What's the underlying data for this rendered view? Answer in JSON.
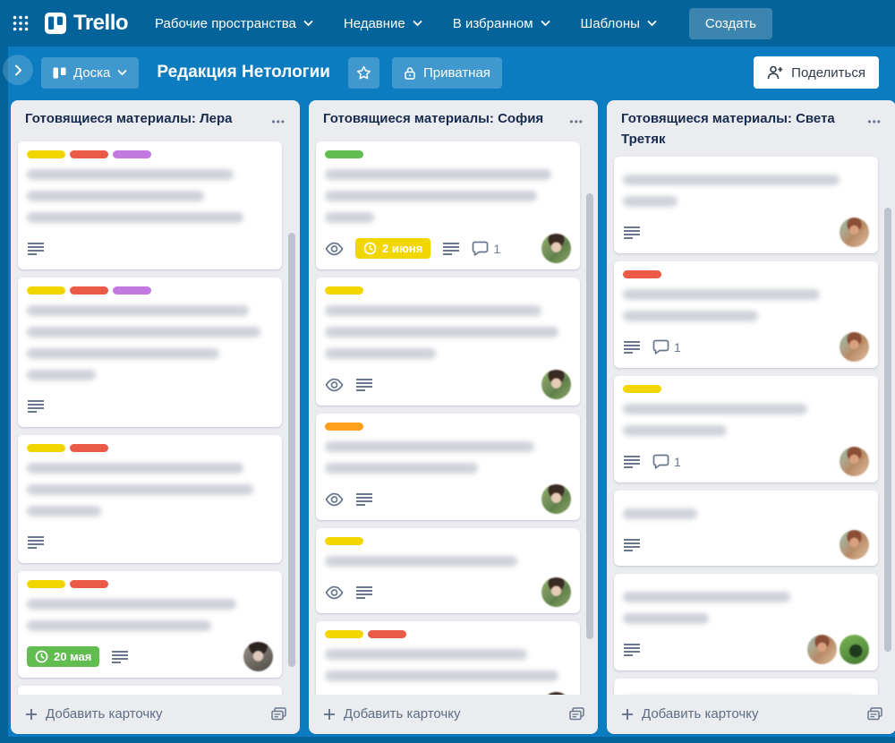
{
  "nav": {
    "logo": "Trello",
    "items": [
      {
        "label": "Рабочие пространства"
      },
      {
        "label": "Недавние"
      },
      {
        "label": "В избранном"
      },
      {
        "label": "Шаблоны"
      }
    ],
    "create_label": "Создать"
  },
  "board_header": {
    "view_label": "Доска",
    "title": "Редакция Нетологии",
    "visibility_label": "Приватная",
    "share_label": "Поделиться"
  },
  "board": {
    "add_card_label": "Добавить карточку",
    "lists": [
      {
        "title": "Готовящиеся материалы: Лера",
        "scrollbar": {
          "top_pct": 17,
          "height_pct": 78
        },
        "cards": [
          {
            "labels": [
              "yellow",
              "red",
              "purple"
            ],
            "lines": [
              0.84,
              0.72,
              0.88
            ],
            "badges": {
              "description": true
            },
            "avatars": []
          },
          {
            "labels": [
              "yellow",
              "red",
              "purple"
            ],
            "lines": [
              0.9,
              0.95,
              0.78,
              0.28
            ],
            "badges": {
              "description": true
            },
            "avatars": []
          },
          {
            "labels": [
              "yellow",
              "red"
            ],
            "lines": [
              0.88,
              0.92,
              0.3
            ],
            "badges": {
              "description": true
            },
            "avatars": []
          },
          {
            "labels": [
              "yellow",
              "red"
            ],
            "lines": [
              0.85,
              0.75
            ],
            "badges": {
              "due": {
                "text": "20 мая",
                "color": "green"
              },
              "description": true
            },
            "avatars": [
              "lera"
            ]
          },
          {
            "labels": [
              "yellow",
              "purple"
            ],
            "lines": [
              0.95
            ],
            "badges": {},
            "avatars": []
          }
        ]
      },
      {
        "title": "Готовящиеся материалы: София",
        "scrollbar": {
          "top_pct": 10,
          "height_pct": 80
        },
        "cards": [
          {
            "labels": [
              "green"
            ],
            "lines": [
              0.92,
              0.86,
              0.2
            ],
            "badges": {
              "watch": true,
              "due": {
                "text": "2 июня",
                "color": "yellow"
              },
              "description": true,
              "comments": "1"
            },
            "avatars": [
              "sofia"
            ]
          },
          {
            "labels": [
              "yellow"
            ],
            "lines": [
              0.88,
              0.95,
              0.45
            ],
            "badges": {
              "watch": true,
              "description": true
            },
            "avatars": [
              "sofia"
            ]
          },
          {
            "labels": [
              "orange"
            ],
            "lines": [
              0.85,
              0.62
            ],
            "badges": {
              "watch": true,
              "description": true
            },
            "avatars": [
              "sofia"
            ]
          },
          {
            "labels": [
              "yellow"
            ],
            "lines": [
              0.78
            ],
            "badges": {
              "watch": true,
              "description": true
            },
            "avatars": [
              "sofia"
            ]
          },
          {
            "labels": [
              "yellow",
              "red"
            ],
            "lines": [
              0.82,
              0.95
            ],
            "badges": {
              "due": {
                "text": "",
                "color": "green"
              }
            },
            "avatars": [
              "sofia"
            ]
          }
        ]
      },
      {
        "title": "Готовящиеся материалы: Света Третяк",
        "scrollbar": {
          "top_pct": 10,
          "height_pct": 82
        },
        "cards": [
          {
            "labels": [],
            "lines": [
              0.88,
              0.22
            ],
            "badges": {
              "description": true
            },
            "avatars": [
              "sveta"
            ]
          },
          {
            "labels": [
              "red"
            ],
            "lines": [
              0.8,
              0.55
            ],
            "badges": {
              "description": true,
              "comments": "1"
            },
            "avatars": [
              "sveta"
            ]
          },
          {
            "labels": [
              "yellow"
            ],
            "lines": [
              0.75,
              0.42
            ],
            "badges": {
              "description": true,
              "comments": "1"
            },
            "avatars": [
              "sveta"
            ]
          },
          {
            "labels": [],
            "lines": [
              0.3
            ],
            "badges": {
              "description": true
            },
            "avatars": [
              "sveta"
            ]
          },
          {
            "labels": [],
            "lines": [
              0.68,
              0.35
            ],
            "badges": {
              "description": true
            },
            "avatars": [
              "sveta",
              "green"
            ]
          },
          {
            "labels": [],
            "lines": [
              0.95,
              0.3
            ],
            "badges": {},
            "avatars": []
          }
        ]
      }
    ]
  },
  "colors": {
    "board_background": "#0c7cc1",
    "chrome_dark": "#04639a",
    "list_background": "#ebecf0",
    "labels": {
      "yellow": "#f2d600",
      "red": "#eb5a46",
      "purple": "#c377e0",
      "green": "#61bd4f",
      "orange": "#ff9f1a"
    }
  },
  "icons": {
    "ellipsis": "•••"
  }
}
